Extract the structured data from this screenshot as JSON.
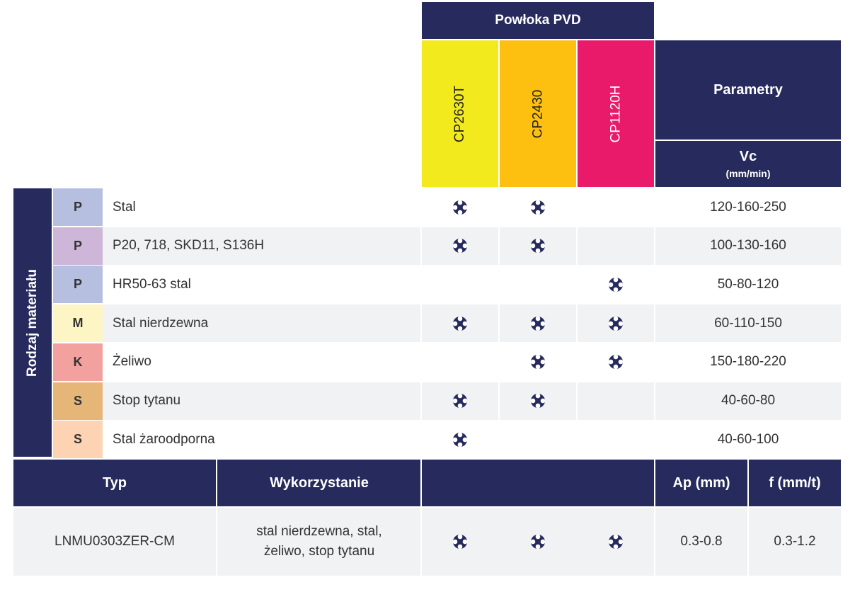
{
  "header": {
    "coating_group": "Powłoka PVD",
    "coatings": [
      {
        "label": "CP2630T",
        "color": "#f2ea1d"
      },
      {
        "label": "CP2430",
        "color": "#fdbf10"
      },
      {
        "label": "CP1120H",
        "color": "#ea1a6a"
      }
    ],
    "parameters": "Parametry",
    "vc_label": "Vc",
    "vc_unit": "(mm/min)"
  },
  "material_side_label": "Rodzaj materiału",
  "materials": [
    {
      "code": "P",
      "code_color": "#b6bfe0",
      "name": "Stal",
      "marks": [
        true,
        true,
        false
      ],
      "vc": "120-160-250"
    },
    {
      "code": "P",
      "code_color": "#cdb6d8",
      "name": "P20, 718, SKD11, S136H",
      "marks": [
        true,
        true,
        false
      ],
      "vc": "100-130-160"
    },
    {
      "code": "P",
      "code_color": "#b6bfe0",
      "name": "HR50-63 stal",
      "marks": [
        false,
        false,
        true
      ],
      "vc": "50-80-120"
    },
    {
      "code": "M",
      "code_color": "#fdf5c4",
      "name": "Stal nierdzewna",
      "marks": [
        true,
        true,
        true
      ],
      "vc": "60-110-150"
    },
    {
      "code": "K",
      "code_color": "#f3a19f",
      "name": "Żeliwo",
      "marks": [
        false,
        true,
        true
      ],
      "vc": "150-180-220"
    },
    {
      "code": "S",
      "code_color": "#e6b679",
      "name": "Stop tytanu",
      "marks": [
        true,
        true,
        false
      ],
      "vc": "40-60-80"
    },
    {
      "code": "S",
      "code_color": "#fdd3b4",
      "name": "Stal żaroodporna",
      "marks": [
        true,
        false,
        false
      ],
      "vc": "40-60-100"
    }
  ],
  "bottom": {
    "headers": {
      "type": "Typ",
      "usage": "Wykorzystanie",
      "marks": "",
      "ap": "Ap (mm)",
      "f": "f (mm/t)"
    },
    "row": {
      "type": "LNMU0303ZER-CM",
      "usage_line1": "stal nierdzewna, stal,",
      "usage_line2": "żeliwo, stop tytanu",
      "marks": [
        true,
        true,
        true
      ],
      "ap": "0.3-0.8",
      "f": "0.3-1.2"
    }
  },
  "colors": {
    "navy": "#262a5c",
    "alt_row": "#f1f2f4"
  },
  "icon": "cross-mark-icon"
}
